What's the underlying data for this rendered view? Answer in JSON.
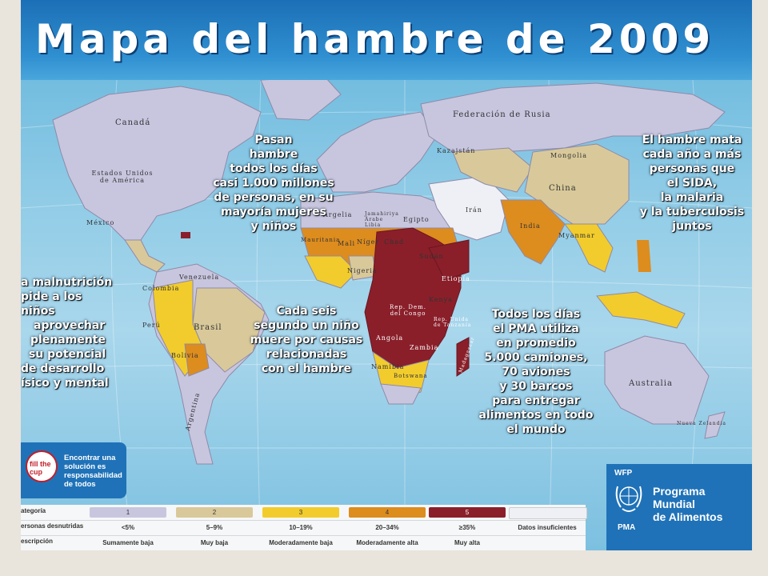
{
  "title": "Mapa del hambre de 2009",
  "colors": {
    "category_1": "#c8c6df",
    "category_2": "#d9c99a",
    "category_3": "#f2cc2c",
    "category_4": "#dd8c1e",
    "category_5": "#8a1f2a",
    "no_data": "#eef0f6",
    "ocean": "#8fcbe6",
    "title_band": "#2f8fd0"
  },
  "callouts": {
    "left_top": [
      "Pasan",
      "hambre",
      "todos los días",
      "casi 1.000 millones",
      "de personas, en su",
      "mayoría mujeres",
      "y niños"
    ],
    "right_top": [
      "El hambre mata",
      "cada año a más",
      "personas que",
      "el SIDA,",
      "la malaria",
      "y la tuberculosis",
      "juntos"
    ],
    "left_middle": [
      "a malnutrición",
      "pide a los niños",
      "aprovechar",
      "plenamente",
      "su potencial",
      "de desarrollo",
      "ísico y mental"
    ],
    "center": [
      "Cada seis",
      "segundo un niño",
      "muere por causas",
      "relacionadas",
      "con el hambre"
    ],
    "right_bottom": [
      "Todos los días",
      "el PMA utiliza",
      "en promedio",
      "5.000 camiones,",
      "70 aviones",
      "y 30 barcos",
      "para entregar",
      "alimentos en todo",
      "el mundo"
    ]
  },
  "countries": {
    "canada": "Canadá",
    "usa": "Estados Unidos de América",
    "mexico": "México",
    "russia": "Federación de Rusia",
    "china": "China",
    "mongolia": "Mongolia",
    "kazakhstan": "Kazajstán",
    "india": "India",
    "brazil": "Brasil",
    "argentina": "Argentina",
    "australia": "Australia",
    "new_zealand": "Nueva Zelandia",
    "chad": "Chad",
    "sudan": "Sudán",
    "nigeria": "Nigeria",
    "mali": "Mali",
    "niger": "Níger",
    "algeria": "Argelia",
    "libya": "Jamahiriya Árabe Libia",
    "egypt": "Egipto",
    "ethiopia": "Etiopía",
    "kenya": "Kenya",
    "drc": "Rep. Dem. del Congo",
    "angola": "Angola",
    "zambia": "Zambia",
    "namibia": "Namibia",
    "botswana": "Botswana",
    "tanzania": "Rep. Unida de Tanzanía",
    "madagascar": "Madagascar",
    "colombia": "Colombia",
    "venezuela": "Venezuela",
    "peru": "Perú",
    "bolivia": "Bolivia",
    "mauritania": "Mauritania",
    "iran": "Irán",
    "myanmar": "Myanmar"
  },
  "fill_cup": {
    "logo_text": "fill the cup",
    "text": "Encontrar una solución es responsabilidad de todos"
  },
  "wfp": {
    "acronym_en": "WFP",
    "acronym_es": "PMA",
    "name": [
      "Programa",
      "Mundial",
      "de Alimentos"
    ]
  },
  "legend": {
    "row_labels": [
      "ategoría",
      "ersonas desnutridas",
      "escripción"
    ],
    "categories": [
      {
        "number": "1",
        "range": "<5%",
        "description": "Sumamente baja"
      },
      {
        "number": "2",
        "range": "5–9%",
        "description": "Muy baja"
      },
      {
        "number": "3",
        "range": "10–19%",
        "description": "Moderadamente baja"
      },
      {
        "number": "4",
        "range": "20–34%",
        "description": "Moderadamente alta"
      },
      {
        "number": "5",
        "range": "≥35%",
        "description": "Muy alta"
      },
      {
        "number": "",
        "range": "Datos insuficientes",
        "description": ""
      }
    ]
  }
}
